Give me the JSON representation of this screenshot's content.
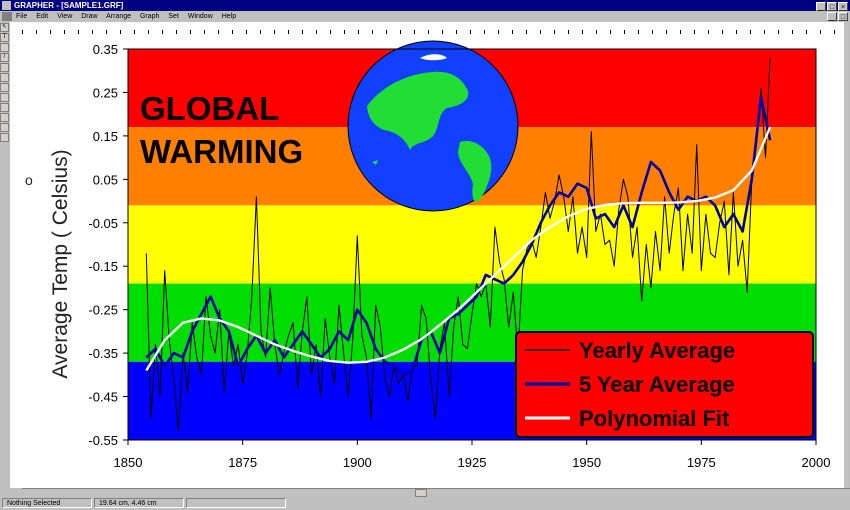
{
  "window": {
    "title": "GRAPHER - [SAMPLE1.GRF]"
  },
  "menu": [
    "File",
    "Edit",
    "View",
    "Draw",
    "Arrange",
    "Graph",
    "Set",
    "Window",
    "Help"
  ],
  "status": {
    "selection": "Nothing Selected",
    "position": "19.64 cm, 4.46 cm"
  },
  "chart_data": {
    "type": "line",
    "title": "GLOBAL WARMING",
    "ylabel": "Average Temp ( °Celsius)",
    "ylabel_text": "Average Temp ( Celsius)",
    "ylabel_degree": "o",
    "xlabel": "",
    "xlim": [
      1850,
      2000
    ],
    "ylim": [
      -0.55,
      0.35
    ],
    "xticks": [
      "1850",
      "1875",
      "1900",
      "1925",
      "1950",
      "1975",
      "2000"
    ],
    "yticks": [
      "0.35",
      "0.25",
      "0.15",
      "0.05",
      "-0.05",
      "-0.15",
      "-0.25",
      "-0.35",
      "-0.45",
      "-0.55"
    ],
    "bands": [
      {
        "from": 0.17,
        "to": 0.35,
        "color": "#ff0000"
      },
      {
        "from": -0.01,
        "to": 0.17,
        "color": "#ff7f00"
      },
      {
        "from": -0.19,
        "to": -0.01,
        "color": "#ffff00"
      },
      {
        "from": -0.37,
        "to": -0.19,
        "color": "#00dd00"
      },
      {
        "from": -0.55,
        "to": -0.37,
        "color": "#0000ff"
      }
    ],
    "legend": {
      "placement": "bottom-right",
      "background": "#ff0000"
    },
    "series": [
      {
        "name": "Yearly Average",
        "color": "#000000",
        "x": [
          1854,
          1855,
          1856,
          1857,
          1858,
          1859,
          1860,
          1861,
          1862,
          1863,
          1864,
          1865,
          1866,
          1867,
          1868,
          1869,
          1870,
          1871,
          1872,
          1873,
          1874,
          1875,
          1876,
          1877,
          1878,
          1879,
          1880,
          1881,
          1882,
          1883,
          1884,
          1885,
          1886,
          1887,
          1888,
          1889,
          1890,
          1891,
          1892,
          1893,
          1894,
          1895,
          1896,
          1897,
          1898,
          1899,
          1900,
          1901,
          1902,
          1903,
          1904,
          1905,
          1906,
          1907,
          1908,
          1909,
          1910,
          1911,
          1912,
          1913,
          1914,
          1915,
          1916,
          1917,
          1918,
          1919,
          1920,
          1921,
          1922,
          1923,
          1924,
          1925,
          1926,
          1927,
          1928,
          1929,
          1930,
          1931,
          1932,
          1933,
          1934,
          1935,
          1936,
          1937,
          1938,
          1939,
          1940,
          1941,
          1942,
          1943,
          1944,
          1945,
          1946,
          1947,
          1948,
          1949,
          1950,
          1951,
          1952,
          1953,
          1954,
          1955,
          1956,
          1957,
          1958,
          1959,
          1960,
          1961,
          1962,
          1963,
          1964,
          1965,
          1966,
          1967,
          1968,
          1969,
          1970,
          1971,
          1972,
          1973,
          1974,
          1975,
          1976,
          1977,
          1978,
          1979,
          1980,
          1981,
          1982,
          1983,
          1984,
          1985,
          1986,
          1987,
          1988,
          1989,
          1990
        ],
        "y": [
          -0.12,
          -0.5,
          -0.33,
          -0.45,
          -0.16,
          -0.32,
          -0.41,
          -0.53,
          -0.35,
          -0.44,
          -0.28,
          -0.36,
          -0.4,
          -0.22,
          -0.31,
          -0.35,
          -0.25,
          -0.44,
          -0.3,
          -0.38,
          -0.33,
          -0.42,
          -0.35,
          -0.22,
          0.01,
          -0.3,
          -0.36,
          -0.2,
          -0.33,
          -0.4,
          -0.35,
          -0.31,
          -0.28,
          -0.43,
          -0.3,
          -0.22,
          -0.4,
          -0.33,
          -0.45,
          -0.27,
          -0.36,
          -0.42,
          -0.24,
          -0.35,
          -0.45,
          -0.32,
          -0.08,
          -0.31,
          -0.36,
          -0.5,
          -0.24,
          -0.29,
          -0.41,
          -0.45,
          -0.38,
          -0.42,
          -0.4,
          -0.46,
          -0.38,
          -0.38,
          -0.24,
          -0.27,
          -0.41,
          -0.5,
          -0.34,
          -0.28,
          -0.45,
          -0.29,
          -0.22,
          -0.33,
          -0.34,
          -0.26,
          -0.19,
          -0.22,
          -0.19,
          -0.29,
          -0.06,
          -0.14,
          -0.18,
          -0.29,
          -0.21,
          -0.35,
          -0.16,
          -0.11,
          -0.09,
          -0.13,
          -0.06,
          0.02,
          -0.04,
          0.0,
          0.06,
          0.01,
          -0.07,
          0.01,
          -0.12,
          -0.06,
          -0.13,
          0.16,
          -0.07,
          -0.03,
          -0.1,
          -0.09,
          -0.15,
          -0.02,
          0.05,
          0.01,
          -0.13,
          -0.06,
          -0.23,
          -0.1,
          -0.2,
          -0.07,
          -0.16,
          0.01,
          -0.12,
          -0.03,
          0.03,
          -0.16,
          -0.03,
          -0.12,
          0.13,
          -0.16,
          -0.03,
          -0.12,
          -0.13,
          -0.05,
          0.0,
          -0.17,
          0.02,
          -0.15,
          -0.09,
          -0.21,
          0.05,
          0.13,
          0.26,
          0.1,
          0.33
        ]
      },
      {
        "name": "5 Year Average",
        "color": "#0000aa",
        "x": [
          1854,
          1856,
          1858,
          1860,
          1862,
          1864,
          1866,
          1868,
          1870,
          1872,
          1874,
          1876,
          1878,
          1880,
          1882,
          1884,
          1886,
          1888,
          1890,
          1892,
          1894,
          1896,
          1898,
          1900,
          1902,
          1904,
          1906,
          1908,
          1910,
          1912,
          1914,
          1916,
          1918,
          1920,
          1922,
          1924,
          1926,
          1928,
          1930,
          1932,
          1934,
          1936,
          1938,
          1940,
          1942,
          1944,
          1946,
          1948,
          1950,
          1952,
          1954,
          1956,
          1958,
          1960,
          1962,
          1964,
          1966,
          1968,
          1970,
          1972,
          1974,
          1976,
          1978,
          1980,
          1982,
          1984,
          1986,
          1988,
          1990
        ],
        "y": [
          -0.36,
          -0.34,
          -0.38,
          -0.35,
          -0.36,
          -0.3,
          -0.26,
          -0.22,
          -0.27,
          -0.3,
          -0.38,
          -0.34,
          -0.31,
          -0.35,
          -0.32,
          -0.36,
          -0.33,
          -0.3,
          -0.33,
          -0.36,
          -0.34,
          -0.3,
          -0.32,
          -0.25,
          -0.28,
          -0.34,
          -0.37,
          -0.38,
          -0.4,
          -0.39,
          -0.32,
          -0.3,
          -0.35,
          -0.27,
          -0.26,
          -0.24,
          -0.22,
          -0.17,
          -0.18,
          -0.19,
          -0.17,
          -0.14,
          -0.1,
          -0.05,
          -0.01,
          0.02,
          0.01,
          0.04,
          0.03,
          -0.04,
          -0.03,
          -0.06,
          -0.01,
          -0.06,
          0.02,
          0.09,
          0.07,
          0.02,
          -0.02,
          0.01,
          0.0,
          0.01,
          -0.01,
          -0.06,
          -0.03,
          -0.07,
          0.05,
          0.24,
          0.14
        ]
      },
      {
        "name": "Polynomial Fit",
        "color": "#ffffff",
        "x": [
          1854,
          1858,
          1862,
          1866,
          1870,
          1874,
          1878,
          1882,
          1886,
          1890,
          1894,
          1898,
          1902,
          1906,
          1910,
          1914,
          1918,
          1922,
          1926,
          1930,
          1934,
          1938,
          1942,
          1946,
          1950,
          1954,
          1958,
          1962,
          1966,
          1970,
          1974,
          1978,
          1982,
          1986,
          1990
        ],
        "y": [
          -0.39,
          -0.32,
          -0.28,
          -0.27,
          -0.275,
          -0.29,
          -0.31,
          -0.33,
          -0.345,
          -0.358,
          -0.368,
          -0.372,
          -0.37,
          -0.36,
          -0.342,
          -0.318,
          -0.285,
          -0.25,
          -0.21,
          -0.17,
          -0.13,
          -0.09,
          -0.06,
          -0.035,
          -0.018,
          -0.009,
          -0.005,
          -0.004,
          -0.004,
          -0.003,
          0.0,
          0.008,
          0.025,
          0.07,
          0.17
        ]
      }
    ]
  },
  "icons": [
    "globe-icon",
    "app-icon",
    "minimize-icon",
    "restore-icon",
    "close-icon"
  ]
}
